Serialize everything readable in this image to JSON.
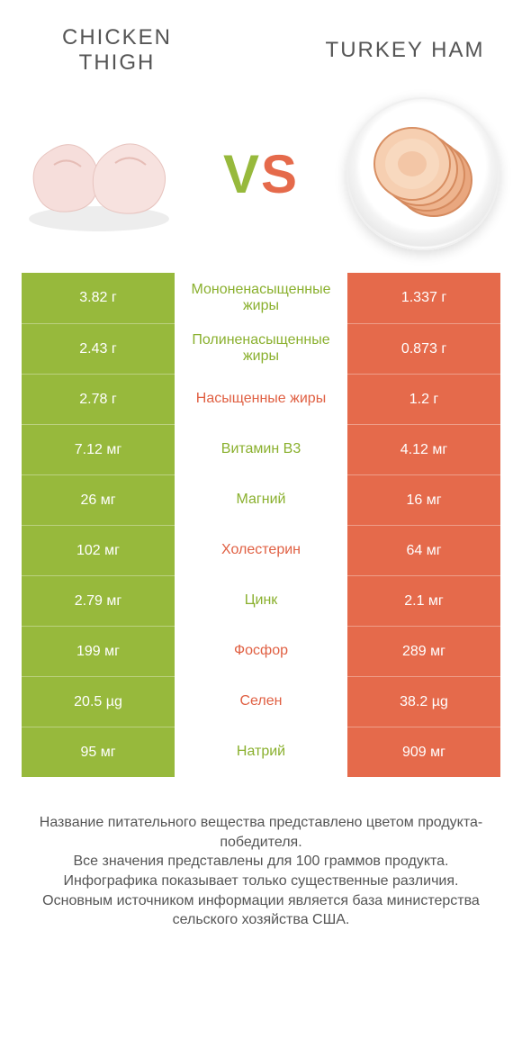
{
  "colors": {
    "left": "#97b93c",
    "right": "#e56a4b",
    "left_text": "#8ab02e",
    "right_text": "#e06043"
  },
  "header": {
    "left_title": "CHICKEN\nTHIGH",
    "right_title": "TURKEY HAM",
    "vs_v": "V",
    "vs_s": "S"
  },
  "rows": [
    {
      "left": "3.82 г",
      "label": "Мононенасыщенные жиры",
      "right": "1.337 г",
      "winner": "left"
    },
    {
      "left": "2.43 г",
      "label": "Полиненасыщенные жиры",
      "right": "0.873 г",
      "winner": "left"
    },
    {
      "left": "2.78 г",
      "label": "Насыщенные жиры",
      "right": "1.2 г",
      "winner": "right"
    },
    {
      "left": "7.12 мг",
      "label": "Витамин B3",
      "right": "4.12 мг",
      "winner": "left"
    },
    {
      "left": "26 мг",
      "label": "Магний",
      "right": "16 мг",
      "winner": "left"
    },
    {
      "left": "102 мг",
      "label": "Холестерин",
      "right": "64 мг",
      "winner": "right"
    },
    {
      "left": "2.79 мг",
      "label": "Цинк",
      "right": "2.1 мг",
      "winner": "left"
    },
    {
      "left": "199 мг",
      "label": "Фосфор",
      "right": "289 мг",
      "winner": "right"
    },
    {
      "left": "20.5 µg",
      "label": "Селен",
      "right": "38.2 µg",
      "winner": "right"
    },
    {
      "left": "95 мг",
      "label": "Натрий",
      "right": "909 мг",
      "winner": "left"
    }
  ],
  "footer": {
    "line1": "Название питательного вещества представлено цветом продукта-победителя.",
    "line2": "Все значения представлены для 100 граммов продукта.",
    "line3": "Инфографика показывает только существенные различия.",
    "line4": "Основным источником информации является база министерства сельского хозяйства США."
  }
}
